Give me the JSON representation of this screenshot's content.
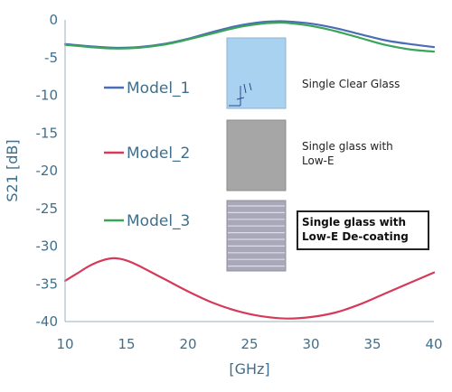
{
  "chart_data": {
    "type": "line",
    "title": "",
    "xlabel": "[GHz]",
    "ylabel": "S21 [dB]",
    "xlim": [
      10,
      40
    ],
    "ylim": [
      -40,
      0
    ],
    "x_ticks": [
      10,
      15,
      20,
      25,
      30,
      35,
      40
    ],
    "y_ticks": [
      0,
      -5,
      -10,
      -15,
      -20,
      -25,
      -30,
      -35,
      -40
    ],
    "grid": false,
    "series": [
      {
        "name": "Model_1",
        "color": "#4a6db5",
        "x": [
          10,
          12,
          14,
          16,
          18,
          20,
          22,
          24,
          26,
          27,
          28,
          30,
          32,
          34,
          36,
          38,
          40
        ],
        "y": [
          -3.2,
          -3.5,
          -3.7,
          -3.6,
          -3.2,
          -2.5,
          -1.6,
          -0.8,
          -0.3,
          -0.2,
          -0.2,
          -0.5,
          -1.1,
          -1.9,
          -2.7,
          -3.2,
          -3.6
        ]
      },
      {
        "name": "Model_2",
        "color": "#d63a5a",
        "x": [
          10,
          11,
          12,
          13,
          14,
          15,
          16,
          18,
          20,
          22,
          24,
          26,
          28,
          30,
          32,
          34,
          36,
          38,
          40
        ],
        "y": [
          -34.6,
          -33.6,
          -32.6,
          -31.9,
          -31.6,
          -31.9,
          -32.6,
          -34.3,
          -36.0,
          -37.5,
          -38.6,
          -39.3,
          -39.6,
          -39.4,
          -38.8,
          -37.7,
          -36.3,
          -34.9,
          -33.5
        ]
      },
      {
        "name": "Model_3",
        "color": "#3aa55a",
        "x": [
          10,
          12,
          14,
          16,
          18,
          20,
          22,
          24,
          26,
          27,
          28,
          30,
          32,
          34,
          36,
          38,
          40
        ],
        "y": [
          -3.3,
          -3.6,
          -3.8,
          -3.7,
          -3.3,
          -2.6,
          -1.8,
          -1.0,
          -0.5,
          -0.4,
          -0.4,
          -0.8,
          -1.5,
          -2.4,
          -3.3,
          -3.9,
          -4.2
        ]
      }
    ],
    "annotations": [
      {
        "text": "Single Clear Glass",
        "bold": false
      },
      {
        "text": "Single glass with\nLow-E",
        "bold": false
      },
      {
        "text": "Single glass with\nLow-E De-coating",
        "bold": true
      }
    ],
    "legend_placement": "left-inside"
  },
  "colors": {
    "glass_clear": "#a9d2f1",
    "glass_lowe": "#a6a6a6",
    "glass_decoat": "#a8a8b8",
    "axis": "#3f6f8c"
  }
}
